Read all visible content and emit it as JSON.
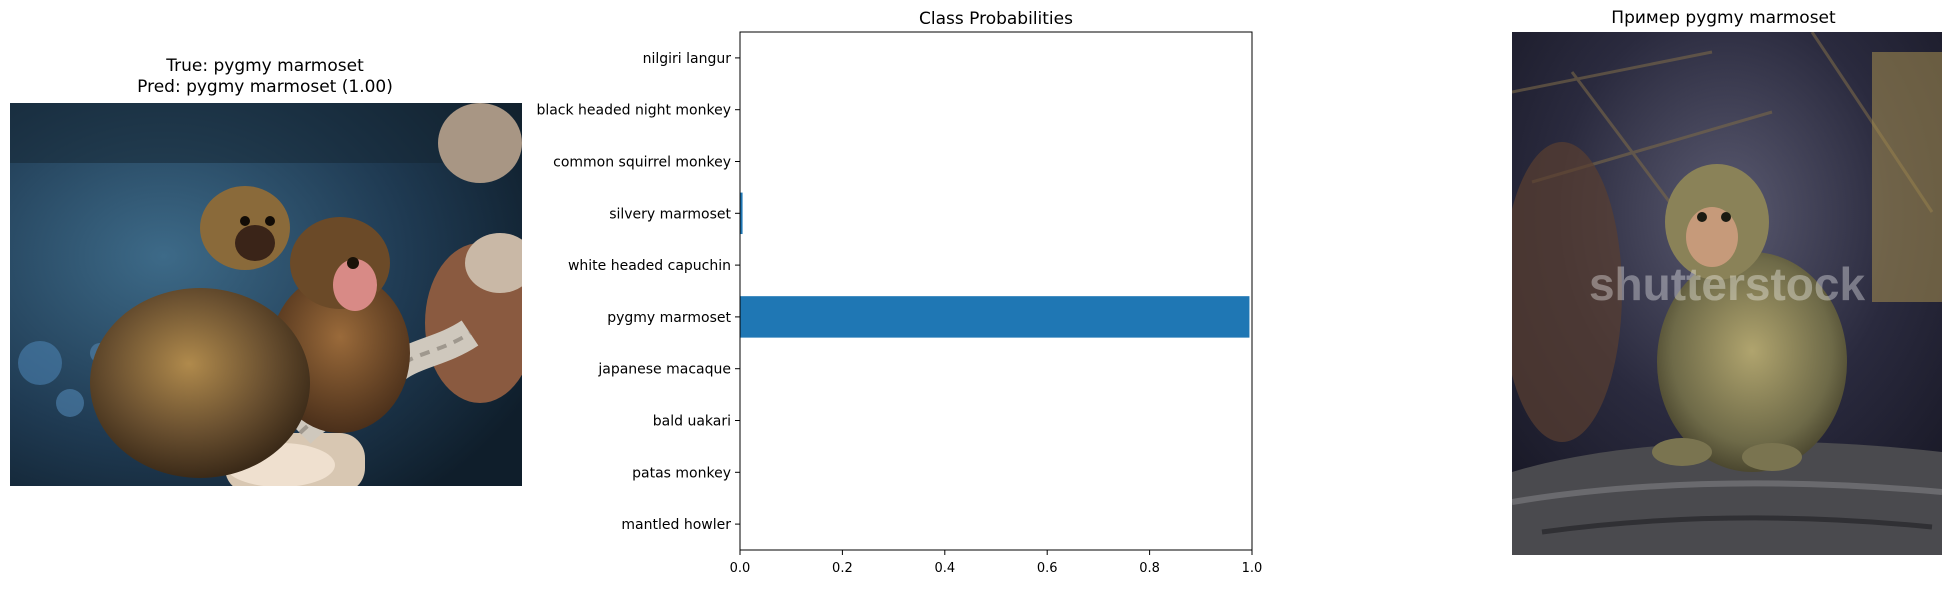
{
  "left_panel": {
    "title_line1": "True: pygmy marmoset",
    "title_line2": "Pred: pygmy marmoset (1.00)",
    "image_subject": "two pygmy marmosets clinging to rope and wooden log"
  },
  "right_panel": {
    "title": "Пример pygmy marmoset",
    "image_subject": "pygmy marmoset sitting on a log",
    "watermark": "shutterstock"
  },
  "colors": {
    "bar": "#1f77b4",
    "axis": "#000000",
    "background": "#ffffff"
  },
  "chart_data": {
    "type": "bar",
    "orientation": "horizontal",
    "title": "Class Probabilities",
    "xlabel": "",
    "ylabel": "",
    "xlim": [
      0,
      1
    ],
    "xticks": [
      "0.0",
      "0.2",
      "0.4",
      "0.6",
      "0.8",
      "1.0"
    ],
    "grid": false,
    "categories": [
      "nilgiri langur",
      "black headed night monkey",
      "common squirrel monkey",
      "silvery marmoset",
      "white headed capuchin",
      "pygmy marmoset",
      "japanese macaque",
      "bald uakari",
      "patas monkey",
      "mantled howler"
    ],
    "values": [
      0.0,
      0.0,
      0.0,
      0.005,
      0.0,
      0.995,
      0.0,
      0.0,
      0.0,
      0.0
    ]
  }
}
